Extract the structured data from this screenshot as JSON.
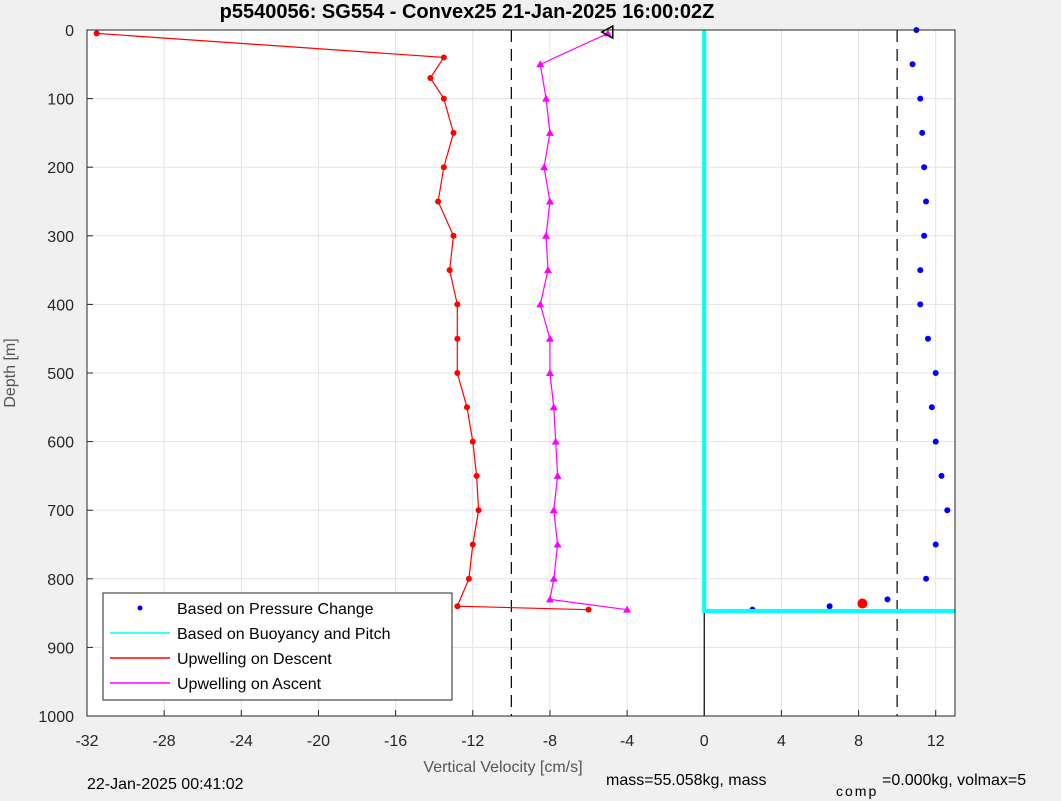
{
  "chart_data": {
    "type": "line",
    "title": "p5540056: SG554 - Convex25 21-Jan-2025 16:00:02Z",
    "xlabel": "Vertical Velocity [cm/s]",
    "ylabel": "Depth [m]",
    "xlim": [
      -32,
      13
    ],
    "ylim": [
      0,
      1000
    ],
    "y_reversed": true,
    "grid": true,
    "xticks": [
      -32,
      -28,
      -24,
      -20,
      -16,
      -12,
      -8,
      -4,
      0,
      4,
      8,
      12
    ],
    "yticks": [
      0,
      100,
      200,
      300,
      400,
      500,
      600,
      700,
      800,
      900,
      1000
    ],
    "reference_lines": {
      "dashed_x": [
        -10,
        10
      ],
      "solid_x": [
        0
      ],
      "solid_from_depth": 845
    },
    "legend_position": "bottom-left",
    "series": [
      {
        "name": "Based on Pressure Change",
        "color": "#0000ff",
        "style": "dots",
        "depth": [
          0,
          50,
          100,
          150,
          200,
          250,
          300,
          350,
          400,
          450,
          500,
          550,
          600,
          650,
          700,
          750,
          800,
          830,
          840,
          845
        ],
        "velocity": [
          11,
          10.8,
          11.2,
          11.3,
          11.4,
          11.5,
          11.4,
          11.2,
          11.2,
          11.6,
          12,
          11.8,
          12,
          12.3,
          12.6,
          12,
          11.5,
          9.5,
          6.5,
          2.5
        ]
      },
      {
        "name": "Based on Buoyancy and Pitch",
        "color": "#00ffff",
        "style": "line",
        "depth": [
          0,
          845,
          847,
          847
        ],
        "velocity": [
          0,
          0,
          0,
          13
        ]
      },
      {
        "name": "Upwelling on Descent",
        "color": "#ff0000",
        "style": "line",
        "depth": [
          5,
          40,
          70,
          100,
          150,
          200,
          250,
          300,
          350,
          400,
          450,
          500,
          550,
          600,
          650,
          700,
          750,
          800,
          840,
          845
        ],
        "velocity": [
          -31.5,
          -13.5,
          -14.2,
          -13.5,
          -13,
          -13.5,
          -13.8,
          -13,
          -13.2,
          -12.8,
          -12.8,
          -12.8,
          -12.3,
          -12,
          -11.8,
          -11.7,
          -12,
          -12.2,
          -12.8,
          -6
        ]
      },
      {
        "name": "Upwelling on Ascent",
        "color": "#ff00ff",
        "style": "line",
        "depth": [
          5,
          50,
          100,
          150,
          200,
          250,
          300,
          350,
          400,
          450,
          500,
          550,
          600,
          650,
          700,
          750,
          800,
          830,
          845
        ],
        "velocity": [
          -5,
          -8.5,
          -8.2,
          -8,
          -8.3,
          -8,
          -8.2,
          -8.1,
          -8.5,
          -8,
          -8,
          -7.8,
          -7.7,
          -7.6,
          -7.8,
          -7.6,
          -7.8,
          -8,
          -4
        ]
      }
    ],
    "markers": [
      {
        "name": "surface-marker",
        "depth": 3,
        "velocity": -5,
        "color": "#000000"
      },
      {
        "name": "end-marker",
        "depth": 836,
        "velocity": 8.2,
        "color": "#ff0000"
      }
    ]
  },
  "footer": {
    "timestamp": "22-Jan-2025 00:41:02",
    "mass_text": "mass=55.058kg, mass",
    "comp_sub": "comp",
    "volmax_text": "=0.000kg, volmax=5"
  }
}
